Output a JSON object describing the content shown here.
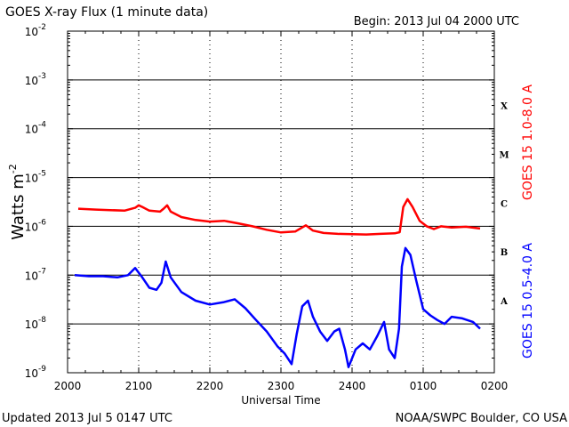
{
  "chart_data": {
    "type": "line",
    "title": "GOES X-ray Flux (1 minute data)",
    "begin_label": "Begin: 2013 Jul 04 2000 UTC",
    "xlabel": "Universal Time",
    "ylabel": "Watts m",
    "ylabel_exp": "-2",
    "y_scale": "log",
    "ylim": [
      1e-09,
      0.01
    ],
    "y_ticks": [
      {
        "value": 0.01,
        "base": "10",
        "exp": "-2"
      },
      {
        "value": 0.001,
        "base": "10",
        "exp": "-3"
      },
      {
        "value": 0.0001,
        "base": "10",
        "exp": "-4"
      },
      {
        "value": 1e-05,
        "base": "10",
        "exp": "-5"
      },
      {
        "value": 1e-06,
        "base": "10",
        "exp": "-6"
      },
      {
        "value": 1e-07,
        "base": "10",
        "exp": "-7"
      },
      {
        "value": 1e-08,
        "base": "10",
        "exp": "-8"
      },
      {
        "value": 1e-09,
        "base": "10",
        "exp": "-9"
      }
    ],
    "x_ticks": [
      "2000",
      "2100",
      "2200",
      "2300",
      "2400",
      "0100",
      "0200"
    ],
    "xlim_hours": [
      0,
      6
    ],
    "flare_classes": [
      {
        "label": "X",
        "value": 0.0003
      },
      {
        "label": "M",
        "value": 3e-05
      },
      {
        "label": "C",
        "value": 3e-06
      },
      {
        "label": "B",
        "value": 3e-07
      },
      {
        "label": "A",
        "value": 3e-08
      }
    ],
    "grid_lines": [
      0.001,
      0.0001,
      1e-05,
      1e-06,
      1e-07,
      1e-08
    ],
    "series": [
      {
        "name": "GOES 15 1.0-8.0 A",
        "color": "#ff0000",
        "points": [
          [
            0.15,
            2.3e-06
          ],
          [
            0.4,
            2.2e-06
          ],
          [
            0.6,
            2.15e-06
          ],
          [
            0.8,
            2.1e-06
          ],
          [
            0.95,
            2.4e-06
          ],
          [
            1.0,
            2.7e-06
          ],
          [
            1.05,
            2.5e-06
          ],
          [
            1.15,
            2.1e-06
          ],
          [
            1.3,
            2e-06
          ],
          [
            1.35,
            2.3e-06
          ],
          [
            1.4,
            2.7e-06
          ],
          [
            1.45,
            2e-06
          ],
          [
            1.6,
            1.55e-06
          ],
          [
            1.8,
            1.35e-06
          ],
          [
            2.0,
            1.25e-06
          ],
          [
            2.2,
            1.3e-06
          ],
          [
            2.4,
            1.15e-06
          ],
          [
            2.6,
            1e-06
          ],
          [
            2.8,
            8.5e-07
          ],
          [
            3.0,
            7.5e-07
          ],
          [
            3.2,
            7.8e-07
          ],
          [
            3.35,
            1.05e-06
          ],
          [
            3.45,
            8.2e-07
          ],
          [
            3.6,
            7.3e-07
          ],
          [
            3.8,
            7e-07
          ],
          [
            4.0,
            6.9e-07
          ],
          [
            4.2,
            6.8e-07
          ],
          [
            4.4,
            7e-07
          ],
          [
            4.6,
            7.2e-07
          ],
          [
            4.67,
            7.6e-07
          ],
          [
            4.72,
            2.5e-06
          ],
          [
            4.78,
            3.6e-06
          ],
          [
            4.85,
            2.5e-06
          ],
          [
            4.95,
            1.3e-06
          ],
          [
            5.05,
            1e-06
          ],
          [
            5.15,
            8.8e-07
          ],
          [
            5.25,
            1e-06
          ],
          [
            5.4,
            9.5e-07
          ],
          [
            5.6,
            9.8e-07
          ],
          [
            5.8,
            9e-07
          ]
        ]
      },
      {
        "name": "GOES 15 0.5-4.0 A",
        "color": "#0000ff",
        "points": [
          [
            0.1,
            1e-07
          ],
          [
            0.3,
            9.5e-08
          ],
          [
            0.5,
            9.5e-08
          ],
          [
            0.7,
            9e-08
          ],
          [
            0.85,
            1e-07
          ],
          [
            0.95,
            1.4e-07
          ],
          [
            1.05,
            9e-08
          ],
          [
            1.15,
            5.5e-08
          ],
          [
            1.25,
            5e-08
          ],
          [
            1.32,
            7e-08
          ],
          [
            1.38,
            1.9e-07
          ],
          [
            1.45,
            9e-08
          ],
          [
            1.6,
            4.5e-08
          ],
          [
            1.8,
            3e-08
          ],
          [
            2.0,
            2.5e-08
          ],
          [
            2.2,
            2.8e-08
          ],
          [
            2.35,
            3.2e-08
          ],
          [
            2.5,
            2.1e-08
          ],
          [
            2.65,
            1.2e-08
          ],
          [
            2.8,
            7e-09
          ],
          [
            2.95,
            3.5e-09
          ],
          [
            3.05,
            2.5e-09
          ],
          [
            3.15,
            1.5e-09
          ],
          [
            3.22,
            6e-09
          ],
          [
            3.3,
            2.3e-08
          ],
          [
            3.38,
            3e-08
          ],
          [
            3.45,
            1.4e-08
          ],
          [
            3.55,
            7e-09
          ],
          [
            3.65,
            4.5e-09
          ],
          [
            3.75,
            7e-09
          ],
          [
            3.82,
            8e-09
          ],
          [
            3.9,
            3e-09
          ],
          [
            3.95,
            1.3e-09
          ],
          [
            4.05,
            3e-09
          ],
          [
            4.15,
            4e-09
          ],
          [
            4.25,
            3e-09
          ],
          [
            4.35,
            5.5e-09
          ],
          [
            4.45,
            1.1e-08
          ],
          [
            4.52,
            3e-09
          ],
          [
            4.6,
            2e-09
          ],
          [
            4.66,
            8e-09
          ],
          [
            4.7,
            1.5e-07
          ],
          [
            4.75,
            3.6e-07
          ],
          [
            4.82,
            2.6e-07
          ],
          [
            4.9,
            8e-08
          ],
          [
            5.0,
            2e-08
          ],
          [
            5.1,
            1.5e-08
          ],
          [
            5.2,
            1.2e-08
          ],
          [
            5.3,
            1e-08
          ],
          [
            5.4,
            1.4e-08
          ],
          [
            5.55,
            1.3e-08
          ],
          [
            5.7,
            1.1e-08
          ],
          [
            5.8,
            8e-09
          ]
        ]
      }
    ]
  },
  "footer": {
    "updated": "Updated 2013 Jul  5 0147 UTC",
    "source": "NOAA/SWPC Boulder, CO USA"
  }
}
